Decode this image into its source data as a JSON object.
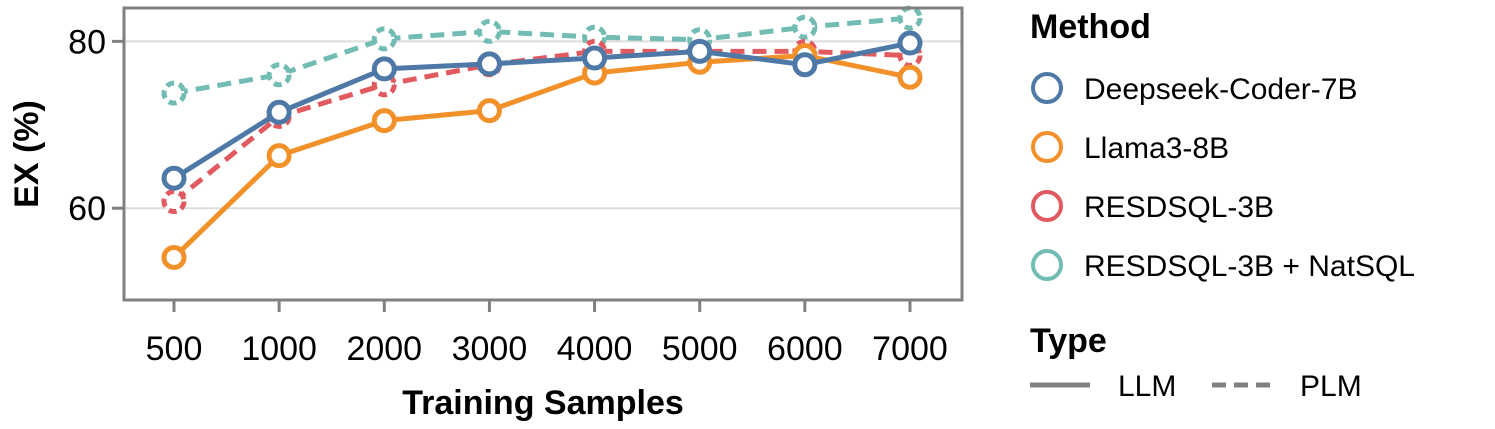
{
  "chart_data": {
    "type": "line",
    "xlabel": "Training Samples",
    "ylabel": "EX (%)",
    "categories": [
      "500",
      "1000",
      "2000",
      "3000",
      "4000",
      "5000",
      "6000",
      "7000"
    ],
    "ylim": [
      49,
      84
    ],
    "yticks": [
      "60",
      "80"
    ],
    "grid": true,
    "legend_placement": "right",
    "legend": {
      "method_title": "Method",
      "type_title": "Type",
      "types": [
        {
          "label": "LLM",
          "dash": "solid"
        },
        {
          "label": "PLM",
          "dash": "dashed"
        }
      ]
    },
    "series": [
      {
        "name": "RESDSQL-3B + NatSQL",
        "type": "PLM",
        "color": "#72bcb4",
        "values": [
          73.8,
          76.0,
          80.3,
          81.2,
          80.5,
          80.2,
          81.7,
          82.8
        ]
      },
      {
        "name": "RESDSQL-3B",
        "type": "PLM",
        "color": "#e15a5f",
        "values": [
          60.8,
          71.0,
          74.8,
          77.2,
          78.8,
          78.8,
          78.8,
          78.3
        ]
      },
      {
        "name": "Llama3-8B",
        "type": "LLM",
        "color": "#f2912a",
        "values": [
          54.1,
          66.3,
          70.5,
          71.7,
          76.2,
          77.5,
          78.3,
          75.7
        ]
      },
      {
        "name": "Deepseek-Coder-7B",
        "type": "LLM",
        "color": "#4e79a7",
        "values": [
          63.6,
          71.5,
          76.7,
          77.3,
          78.0,
          78.8,
          77.2,
          79.8
        ]
      }
    ],
    "legend_order": [
      "Deepseek-Coder-7B",
      "Llama3-8B",
      "RESDSQL-3B",
      "RESDSQL-3B + NatSQL"
    ]
  }
}
